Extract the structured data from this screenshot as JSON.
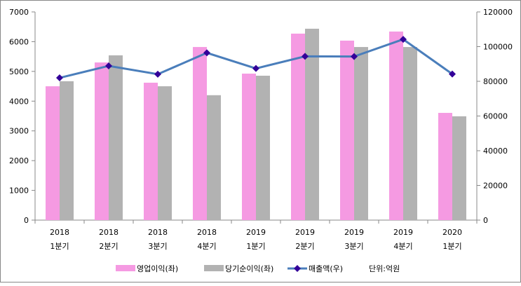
{
  "chart_data": {
    "type": "bar+line",
    "title": "",
    "categories": [
      [
        "2018",
        "1분기"
      ],
      [
        "2018",
        "2분기"
      ],
      [
        "2018",
        "3분기"
      ],
      [
        "2018",
        "4분기"
      ],
      [
        "2019",
        "1분기"
      ],
      [
        "2019",
        "2분기"
      ],
      [
        "2019",
        "3분기"
      ],
      [
        "2019",
        "4분기"
      ],
      [
        "2020",
        "1분기"
      ]
    ],
    "y_left": {
      "min": 0,
      "max": 7000,
      "step": 1000,
      "ticks": [
        "0",
        "1000",
        "2000",
        "3000",
        "4000",
        "5000",
        "6000",
        "7000"
      ]
    },
    "y_right": {
      "min": 0,
      "max": 120000,
      "step": 20000,
      "ticks": [
        "0",
        "20000",
        "40000",
        "60000",
        "80000",
        "100000",
        "120000"
      ]
    },
    "series": [
      {
        "name": "영업이익(좌)",
        "type": "bar",
        "axis": "left",
        "color": "#F59AE2",
        "values": [
          4500,
          5300,
          4620,
          5820,
          4925,
          6270,
          6035,
          6340,
          3605
        ]
      },
      {
        "name": "당기순이익(좌)",
        "type": "bar",
        "axis": "left",
        "color": "#B2B2B2",
        "values": [
          4670,
          5540,
          4500,
          4200,
          4855,
          6435,
          5820,
          5820,
          3490
        ]
      },
      {
        "name": "매출액(우)",
        "type": "line",
        "axis": "right",
        "color": "#4A7EBB",
        "marker_color": "#330099",
        "values": [
          82000,
          88900,
          84100,
          96400,
          87400,
          94400,
          94300,
          104200,
          84200
        ]
      }
    ],
    "unit_note": "단위:억원",
    "legend": "bottom",
    "grid": false
  }
}
